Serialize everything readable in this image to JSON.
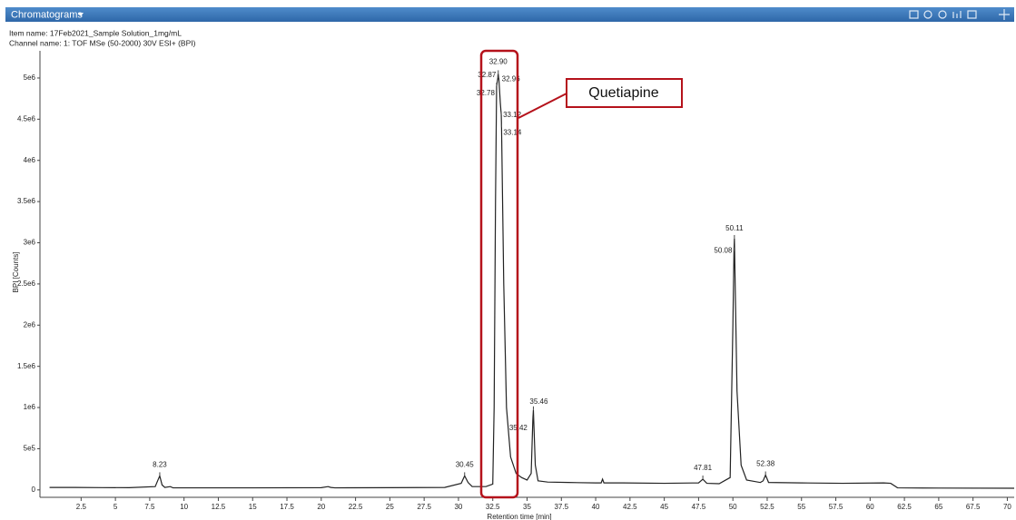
{
  "header": {
    "title": "Chromatograms",
    "item_name": "Item name: 17Feb2021_Sample Solution_1mg/mL",
    "channel_name": "Channel name: 1: TOF MSe (50-2000) 30V ESI+ (BPI)"
  },
  "chart_data": {
    "type": "line",
    "color": "#222222",
    "x_label": "Retention time [min]",
    "y_label": "BPI [Counts]",
    "annotation": "Quetiapine",
    "xlim": [
      -0.5,
      70.5
    ],
    "ylim": [
      -90000,
      5330000
    ],
    "xticks": [
      2.5,
      5,
      7.5,
      10,
      12.5,
      15,
      17.5,
      20,
      22.5,
      25,
      27.5,
      30,
      32.5,
      35,
      37.5,
      40,
      42.5,
      45,
      47.5,
      50,
      52.5,
      55,
      57.5,
      60,
      62.5,
      65,
      67.5,
      70
    ],
    "yticks": [
      0,
      {
        "value": 500000,
        "label": "5e5"
      },
      {
        "value": 1000000,
        "label": "1e6"
      },
      {
        "value": 1500000,
        "label": "1.5e6"
      },
      {
        "value": 2000000,
        "label": "2e6"
      },
      {
        "value": 2500000,
        "label": "2.5e6"
      },
      {
        "value": 3000000,
        "label": "3e6"
      },
      {
        "value": 3500000,
        "label": "3.5e6"
      },
      {
        "value": 4000000,
        "label": "4e6"
      },
      {
        "value": 4500000,
        "label": "4.5e6"
      },
      {
        "value": 5000000,
        "label": "5e6"
      }
    ],
    "x": [
      0.2,
      2,
      4,
      6,
      7.9,
      8.1,
      8.23,
      8.4,
      8.6,
      9,
      9.2,
      9.4,
      12,
      15,
      20,
      20.5,
      20.7,
      21,
      25,
      29,
      30.2,
      30.45,
      30.7,
      31,
      32,
      32.5,
      32.6,
      32.7,
      32.78,
      32.87,
      32.9,
      32.96,
      33.05,
      33.12,
      33.14,
      33.3,
      33.5,
      33.8,
      34.2,
      34.6,
      35,
      35.3,
      35.42,
      35.46,
      35.6,
      35.8,
      36.5,
      38,
      40,
      40.4,
      40.5,
      40.6,
      42,
      45,
      47.5,
      47.81,
      48.1,
      49,
      49.8,
      50.0,
      50.08,
      50.11,
      50.3,
      50.6,
      51,
      52,
      52.2,
      52.38,
      52.6,
      55,
      58,
      61,
      61.5,
      62,
      65,
      70.5
    ],
    "values": [
      30000,
      30000,
      28000,
      27000,
      40000,
      120000,
      170000,
      60000,
      30000,
      40000,
      25000,
      25000,
      25000,
      25000,
      27000,
      40000,
      30000,
      25000,
      27000,
      30000,
      80000,
      170000,
      90000,
      40000,
      40000,
      70000,
      1000000,
      3500000,
      4900000,
      5000000,
      5050000,
      4950000,
      4700000,
      4550000,
      4400000,
      2500000,
      1000000,
      400000,
      200000,
      150000,
      120000,
      200000,
      850000,
      970000,
      300000,
      110000,
      95000,
      90000,
      85000,
      85000,
      130000,
      85000,
      85000,
      80000,
      85000,
      130000,
      80000,
      75000,
      150000,
      2000000,
      2900000,
      3050000,
      1200000,
      300000,
      120000,
      90000,
      110000,
      180000,
      90000,
      85000,
      80000,
      85000,
      80000,
      25000,
      22000,
      20000
    ],
    "peaks": [
      {
        "label": "8.23",
        "x": 8.23,
        "y": 170000
      },
      {
        "label": "30.45",
        "x": 30.45,
        "y": 170000
      },
      {
        "label": "32.78",
        "x": 32.78,
        "y": 4900000
      },
      {
        "label": "32.87",
        "x": 32.87,
        "y": 5000000
      },
      {
        "label": "32.90",
        "x": 32.9,
        "y": 5050000
      },
      {
        "label": "32.96",
        "x": 32.96,
        "y": 4950000
      },
      {
        "label": "33.12",
        "x": 33.12,
        "y": 4550000
      },
      {
        "label": "33.14",
        "x": 33.14,
        "y": 4400000
      },
      {
        "label": "35.42",
        "x": 35.42,
        "y": 850000
      },
      {
        "label": "35.46",
        "x": 35.46,
        "y": 970000
      },
      {
        "label": "47.81",
        "x": 47.81,
        "y": 130000
      },
      {
        "label": "50.08",
        "x": 50.08,
        "y": 2900000
      },
      {
        "label": "50.11",
        "x": 50.11,
        "y": 3050000
      },
      {
        "label": "52.38",
        "x": 52.38,
        "y": 180000
      }
    ]
  }
}
